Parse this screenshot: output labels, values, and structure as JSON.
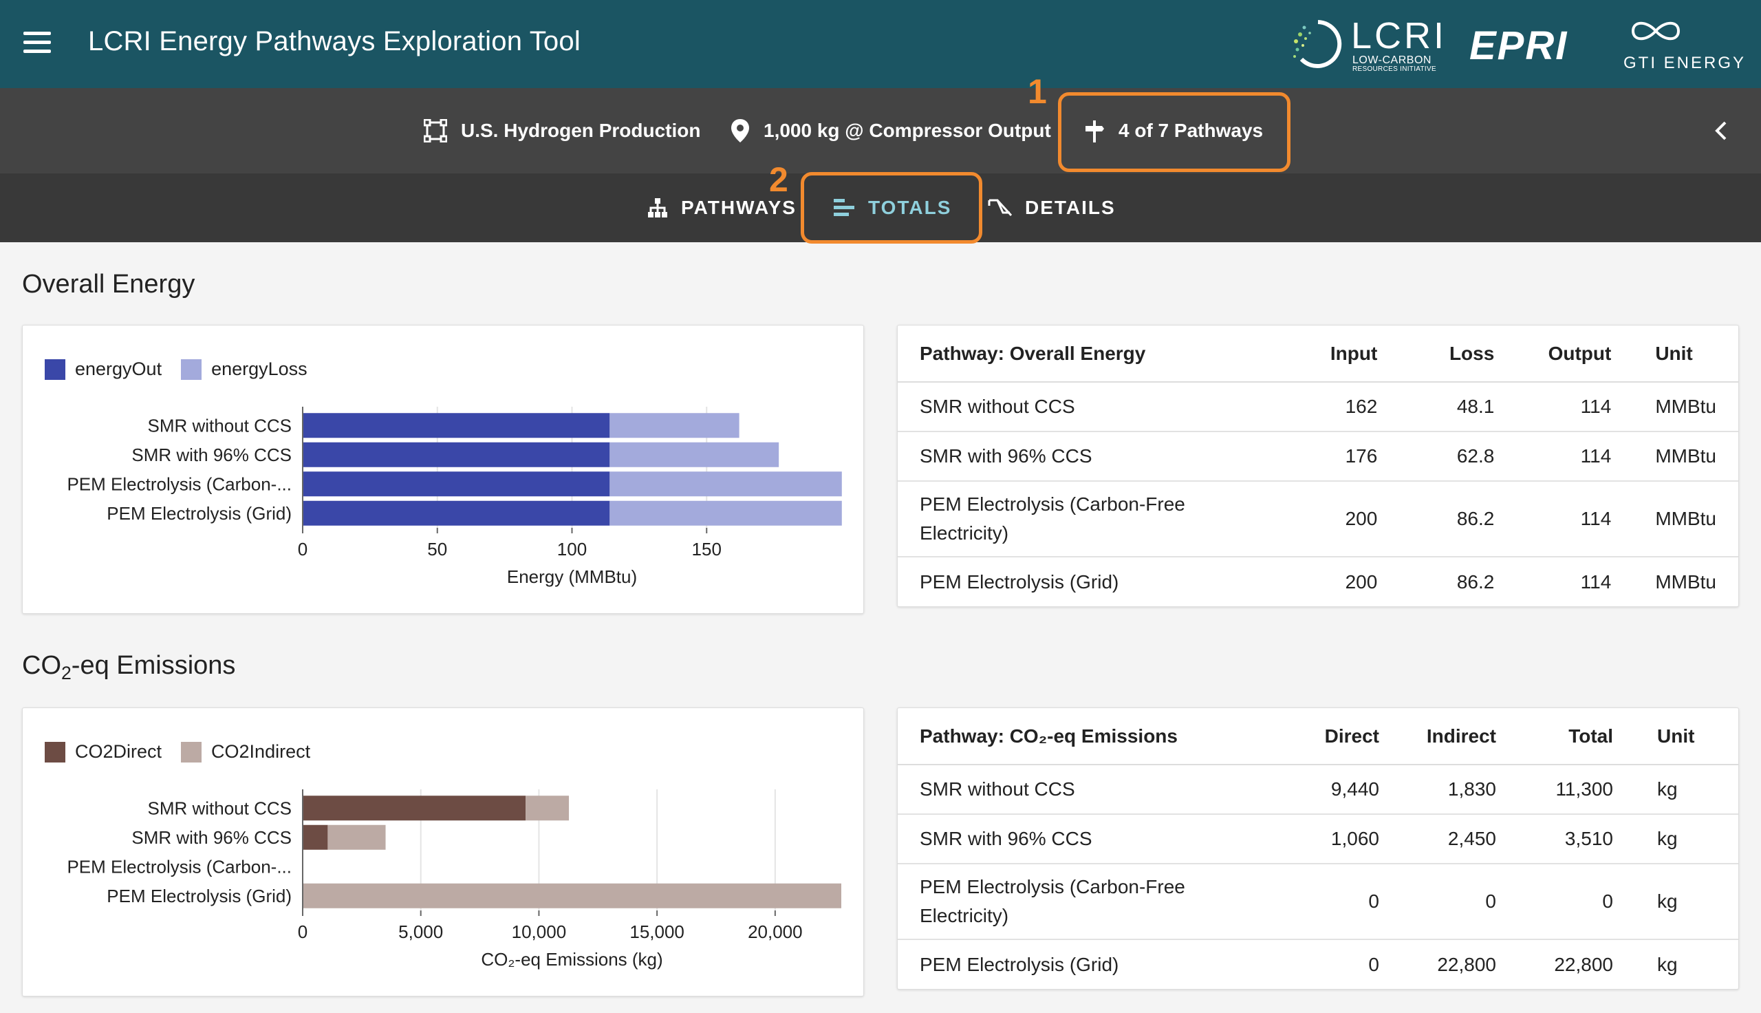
{
  "app": {
    "title": "LCRI Energy Pathways Exploration Tool"
  },
  "logos": {
    "lcri": {
      "main": "LCRI",
      "sub1": "LOW-CARBON",
      "sub2": "RESOURCES INITIATIVE"
    },
    "epri": "EPRI",
    "gti": "GTI ENERGY"
  },
  "context": {
    "scope": "U.S. Hydrogen Production",
    "basis": "1,000 kg @ Compressor Output",
    "pathways": "4 of 7 Pathways"
  },
  "tabs": [
    {
      "label": "PATHWAYS",
      "active": false
    },
    {
      "label": "TOTALS",
      "active": true
    },
    {
      "label": "DETAILS",
      "active": false
    }
  ],
  "annotations": [
    "1",
    "2"
  ],
  "colors": {
    "header": "#1b5563",
    "energyOut": "#3a47a8",
    "energyLoss": "#a3aadc",
    "co2Direct": "#6d4c44",
    "co2Indirect": "#bcaaa4",
    "highlight": "#f28a2e"
  },
  "energy": {
    "title": "Overall Energy",
    "chart_data": {
      "type": "bar",
      "orientation": "horizontal",
      "stacked": true,
      "categories": [
        "SMR without CCS",
        "SMR with 96% CCS",
        "PEM Electrolysis (Carbon-...",
        "PEM Electrolysis (Grid)"
      ],
      "series": [
        {
          "name": "energyOut",
          "values": [
            114,
            114,
            114,
            114
          ]
        },
        {
          "name": "energyLoss",
          "values": [
            48.1,
            62.8,
            86.2,
            86.2
          ]
        }
      ],
      "xlabel": "Energy (MMBtu)",
      "xlim": [
        0,
        200
      ],
      "xticks": [
        "0",
        "50",
        "100",
        "150"
      ],
      "xtick_values": [
        0,
        50,
        100,
        150
      ],
      "grid": true,
      "legend": "top-left"
    },
    "table": {
      "headers": [
        "Pathway: Overall Energy",
        "Input",
        "Loss",
        "Output",
        "Unit"
      ],
      "rows": [
        [
          "SMR without CCS",
          "162",
          "48.1",
          "114",
          "MMBtu"
        ],
        [
          "SMR with 96% CCS",
          "176",
          "62.8",
          "114",
          "MMBtu"
        ],
        [
          "PEM Electrolysis (Carbon-Free Electricity)",
          "200",
          "86.2",
          "114",
          "MMBtu"
        ],
        [
          "PEM Electrolysis (Grid)",
          "200",
          "86.2",
          "114",
          "MMBtu"
        ]
      ]
    }
  },
  "emissions": {
    "title_pre": "CO",
    "title_sub": "2",
    "title_post": "-eq Emissions",
    "chart_data": {
      "type": "bar",
      "orientation": "horizontal",
      "stacked": true,
      "categories": [
        "SMR without CCS",
        "SMR with 96% CCS",
        "PEM Electrolysis (Carbon-...",
        "PEM Electrolysis (Grid)"
      ],
      "series": [
        {
          "name": "CO2Direct",
          "values": [
            9440,
            1060,
            0,
            0
          ]
        },
        {
          "name": "CO2Indirect",
          "values": [
            1830,
            2450,
            0,
            22800
          ]
        }
      ],
      "xlabel": "CO₂-eq Emissions (kg)",
      "xlim": [
        0,
        22800
      ],
      "xticks": [
        "0",
        "5,000",
        "10,000",
        "15,000",
        "20,000"
      ],
      "xtick_values": [
        0,
        5000,
        10000,
        15000,
        20000
      ],
      "grid": true,
      "legend": "top-left"
    },
    "table": {
      "headers": [
        "Pathway: CO₂-eq Emissions",
        "Direct",
        "Indirect",
        "Total",
        "Unit"
      ],
      "rows": [
        [
          "SMR without CCS",
          "9,440",
          "1,830",
          "11,300",
          "kg"
        ],
        [
          "SMR with 96% CCS",
          "1,060",
          "2,450",
          "3,510",
          "kg"
        ],
        [
          "PEM Electrolysis (Carbon-Free Electricity)",
          "0",
          "0",
          "0",
          "kg"
        ],
        [
          "PEM Electrolysis (Grid)",
          "0",
          "22,800",
          "22,800",
          "kg"
        ]
      ]
    }
  }
}
